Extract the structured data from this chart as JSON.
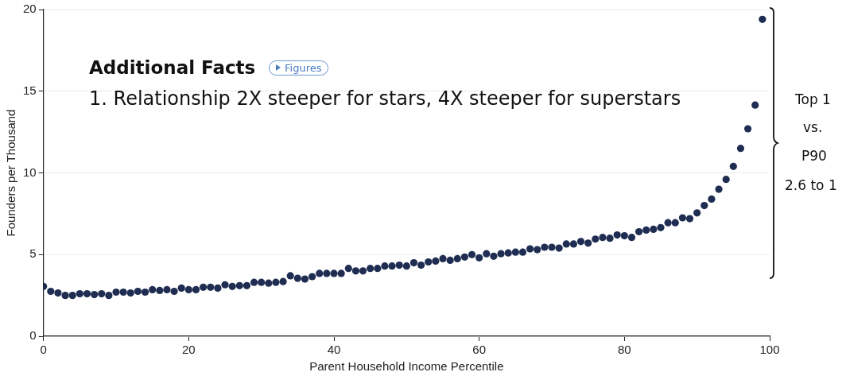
{
  "chart_data": {
    "type": "scatter",
    "xlabel": "Parent Household Income Percentile",
    "ylabel": "Founders per Thousand",
    "x": [
      0,
      1,
      2,
      3,
      4,
      5,
      6,
      7,
      8,
      9,
      10,
      11,
      12,
      13,
      14,
      15,
      16,
      17,
      18,
      19,
      20,
      21,
      22,
      23,
      24,
      25,
      26,
      27,
      28,
      29,
      30,
      31,
      32,
      33,
      34,
      35,
      36,
      37,
      38,
      39,
      40,
      41,
      42,
      43,
      44,
      45,
      46,
      47,
      48,
      49,
      50,
      51,
      52,
      53,
      54,
      55,
      56,
      57,
      58,
      59,
      60,
      61,
      62,
      63,
      64,
      65,
      66,
      67,
      68,
      69,
      70,
      71,
      72,
      73,
      74,
      75,
      76,
      77,
      78,
      79,
      80,
      81,
      82,
      83,
      84,
      85,
      86,
      87,
      88,
      89,
      90,
      91,
      92,
      93,
      94,
      95,
      96,
      97,
      98,
      99
    ],
    "series": [
      {
        "color": "#1f2d52",
        "values": [
          3.05,
          2.75,
          2.65,
          2.5,
          2.5,
          2.6,
          2.6,
          2.55,
          2.6,
          2.5,
          2.7,
          2.7,
          2.65,
          2.75,
          2.7,
          2.85,
          2.8,
          2.85,
          2.75,
          2.95,
          2.85,
          2.85,
          3.0,
          3.0,
          2.95,
          3.15,
          3.05,
          3.1,
          3.1,
          3.3,
          3.3,
          3.25,
          3.3,
          3.35,
          3.7,
          3.55,
          3.5,
          3.65,
          3.85,
          3.85,
          3.85,
          3.85,
          4.15,
          4.0,
          4.0,
          4.15,
          4.15,
          4.3,
          4.3,
          4.35,
          4.3,
          4.5,
          4.35,
          4.55,
          4.6,
          4.75,
          4.65,
          4.75,
          4.85,
          5.0,
          4.8,
          5.05,
          4.9,
          5.05,
          5.1,
          5.15,
          5.15,
          5.35,
          5.3,
          5.45,
          5.45,
          5.4,
          5.65,
          5.65,
          5.8,
          5.7,
          5.95,
          6.05,
          6.0,
          6.2,
          6.15,
          6.05,
          6.4,
          6.5,
          6.55,
          6.65,
          6.95,
          6.95,
          7.25,
          7.2,
          7.55,
          8.0,
          8.4,
          9.0,
          9.6,
          10.4,
          11.5,
          12.7,
          14.15,
          19.4
        ]
      }
    ],
    "xlim": [
      0,
      100
    ],
    "xticks": [
      0,
      20,
      40,
      60,
      80,
      100
    ],
    "ylim": [
      0,
      20
    ],
    "yticks": [
      0,
      5,
      10,
      15,
      20
    ],
    "grid": "y",
    "legend": false,
    "marker": "circle",
    "annotations": [
      "Additional Facts",
      "Figures",
      "1. Relationship 2X steeper for stars, 4X steeper for superstars",
      "Top 1",
      "vs.",
      "P90",
      "2.6 to 1"
    ]
  }
}
